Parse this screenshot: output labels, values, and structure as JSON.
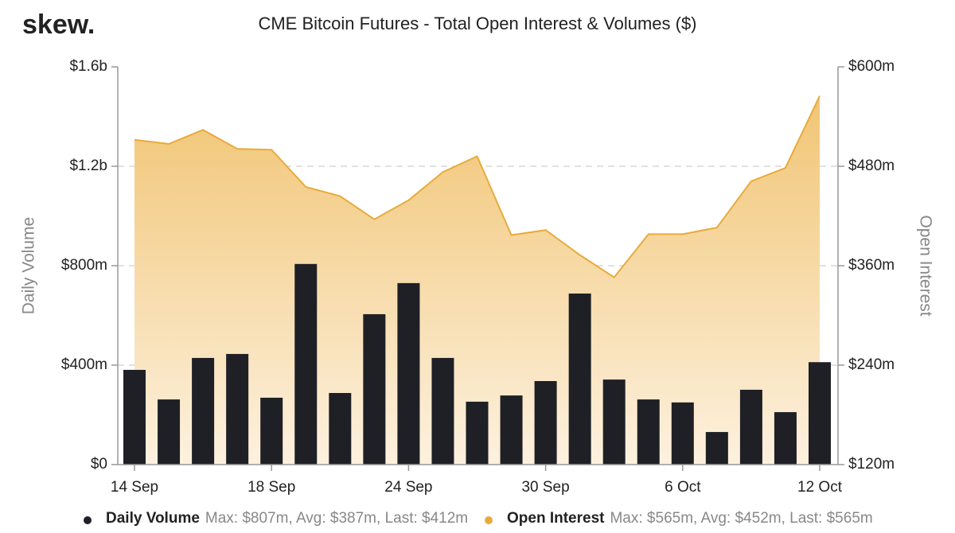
{
  "logo": "skew.",
  "chart_data": {
    "type": "bar-area",
    "title": "CME Bitcoin Futures - Total Open Interest & Volumes ($)",
    "y_label": "Daily Volume",
    "y2_label": "Open Interest",
    "categories": [
      "14 Sep",
      null,
      null,
      null,
      "18 Sep",
      null,
      null,
      null,
      "24 Sep",
      null,
      null,
      null,
      "30 Sep",
      null,
      null,
      null,
      "6 Oct",
      null,
      null,
      null,
      "12 Oct"
    ],
    "ylim": [
      0,
      1600
    ],
    "yticks": [
      {
        "value": 0,
        "label": "$0"
      },
      {
        "value": 400,
        "label": "$400m"
      },
      {
        "value": 800,
        "label": "$800m"
      },
      {
        "value": 1200,
        "label": "$1.2b"
      },
      {
        "value": 1600,
        "label": "$1.6b"
      }
    ],
    "y2lim": [
      120,
      600
    ],
    "y2ticks": [
      {
        "value": 120,
        "label": "$120m"
      },
      {
        "value": 240,
        "label": "$240m"
      },
      {
        "value": 360,
        "label": "$360m"
      },
      {
        "value": 480,
        "label": "$480m"
      },
      {
        "value": 600,
        "label": "$600m"
      }
    ],
    "grid": true,
    "series": [
      {
        "name": "Daily Volume",
        "color": "#1f2026",
        "stats": "Max: $807m, Avg: $387m, Last: $412m",
        "values": [
          381,
          262,
          429,
          445,
          269,
          807,
          288,
          605,
          730,
          429,
          253,
          278,
          336,
          688,
          342,
          262,
          250,
          131,
          301,
          211,
          412
        ]
      },
      {
        "name": "Open Interest",
        "color": "#e8ab3a",
        "axis": "y2",
        "stats": "Max: $565m, Avg: $452m, Last: $565m",
        "values": [
          512,
          507,
          524,
          501,
          500,
          455,
          444,
          416,
          439,
          473,
          492,
          397,
          403,
          373,
          346,
          398,
          398,
          406,
          462,
          478,
          565
        ]
      }
    ]
  }
}
